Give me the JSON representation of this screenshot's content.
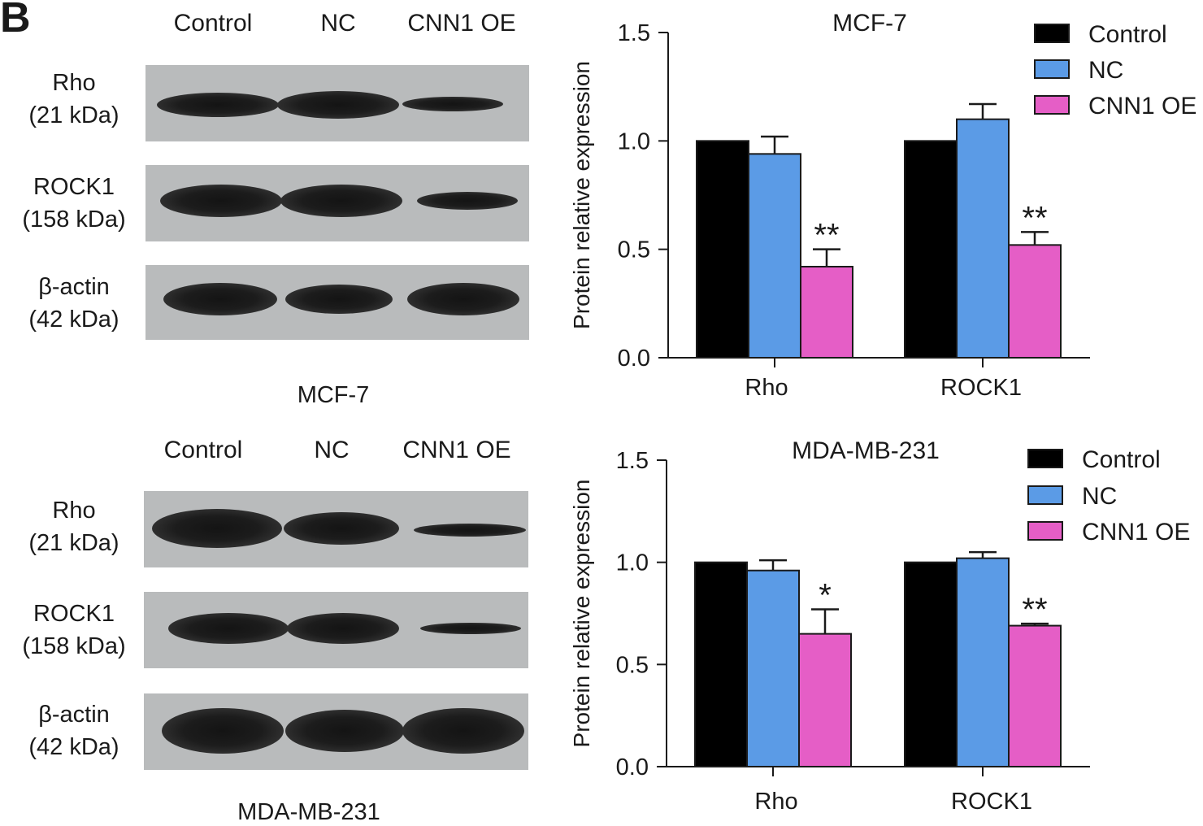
{
  "panel_label": "B",
  "blots": [
    {
      "cell_line": "MCF-7",
      "lanes": [
        "Control",
        "NC",
        "CNN1 OE"
      ],
      "rows": [
        {
          "name": "Rho",
          "mw": "(21 kDa)"
        },
        {
          "name": "ROCK1",
          "mw": "(158 kDa)"
        },
        {
          "name": "β-actin",
          "mw": "(42 kDa)"
        }
      ]
    },
    {
      "cell_line": "MDA-MB-231",
      "lanes": [
        "Control",
        "NC",
        "CNN1 OE"
      ],
      "rows": [
        {
          "name": "Rho",
          "mw": "(21 kDa)"
        },
        {
          "name": "ROCK1",
          "mw": "(158 kDa)"
        },
        {
          "name": "β-actin",
          "mw": "(42 kDa)"
        }
      ]
    }
  ],
  "colors": {
    "Control": "#000000",
    "NC": "#5b9be6",
    "CNN1 OE": "#e55ec6"
  },
  "chart_data": [
    {
      "type": "bar",
      "title": "MCF-7",
      "xlabel": "",
      "ylabel": "Protein relative expression",
      "ylim": [
        0,
        1.5
      ],
      "yticks": [
        "0.0",
        "0.5",
        "1.0",
        "1.5"
      ],
      "categories": [
        "Rho",
        "ROCK1"
      ],
      "legend": "top-right",
      "series": [
        {
          "name": "Control",
          "values": [
            1.0,
            1.0
          ],
          "errors": [
            0,
            0
          ]
        },
        {
          "name": "NC",
          "values": [
            0.94,
            1.1
          ],
          "errors": [
            0.08,
            0.07
          ]
        },
        {
          "name": "CNN1 OE",
          "values": [
            0.42,
            0.52
          ],
          "errors": [
            0.08,
            0.06
          ]
        }
      ],
      "annotations": [
        {
          "category": "Rho",
          "series": "CNN1 OE",
          "text": "**"
        },
        {
          "category": "ROCK1",
          "series": "CNN1 OE",
          "text": "**"
        }
      ]
    },
    {
      "type": "bar",
      "title": "MDA-MB-231",
      "xlabel": "",
      "ylabel": "Protein relative expression",
      "ylim": [
        0,
        1.5
      ],
      "yticks": [
        "0.0",
        "0.5",
        "1.0",
        "1.5"
      ],
      "categories": [
        "Rho",
        "ROCK1"
      ],
      "legend": "top-right",
      "series": [
        {
          "name": "Control",
          "values": [
            1.0,
            1.0
          ],
          "errors": [
            0,
            0
          ]
        },
        {
          "name": "NC",
          "values": [
            0.96,
            1.02
          ],
          "errors": [
            0.05,
            0.03
          ]
        },
        {
          "name": "CNN1 OE",
          "values": [
            0.65,
            0.69
          ],
          "errors": [
            0.12,
            0.01
          ]
        }
      ],
      "annotations": [
        {
          "category": "Rho",
          "series": "CNN1 OE",
          "text": "*"
        },
        {
          "category": "ROCK1",
          "series": "CNN1 OE",
          "text": "**"
        }
      ]
    }
  ]
}
